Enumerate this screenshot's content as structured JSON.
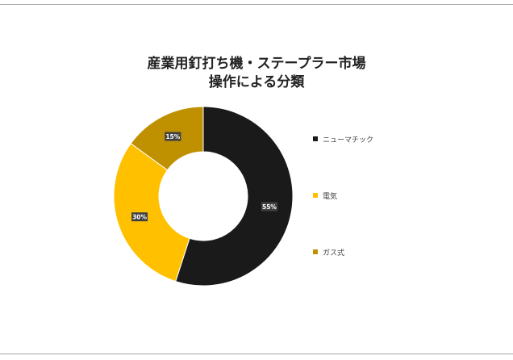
{
  "chart_data": {
    "type": "pie",
    "donut": true,
    "title_lines": [
      "産業用釘打ち機・ステープラー市場",
      "操作による分類"
    ],
    "categories": [
      "ニューマチック",
      "電気",
      "ガス式"
    ],
    "values": [
      55,
      30,
      15
    ],
    "data_labels": [
      "55%",
      "30%",
      "15%"
    ],
    "colors": [
      "#1a1a1a",
      "#ffc000",
      "#bf9000"
    ],
    "legend_position": "right"
  }
}
